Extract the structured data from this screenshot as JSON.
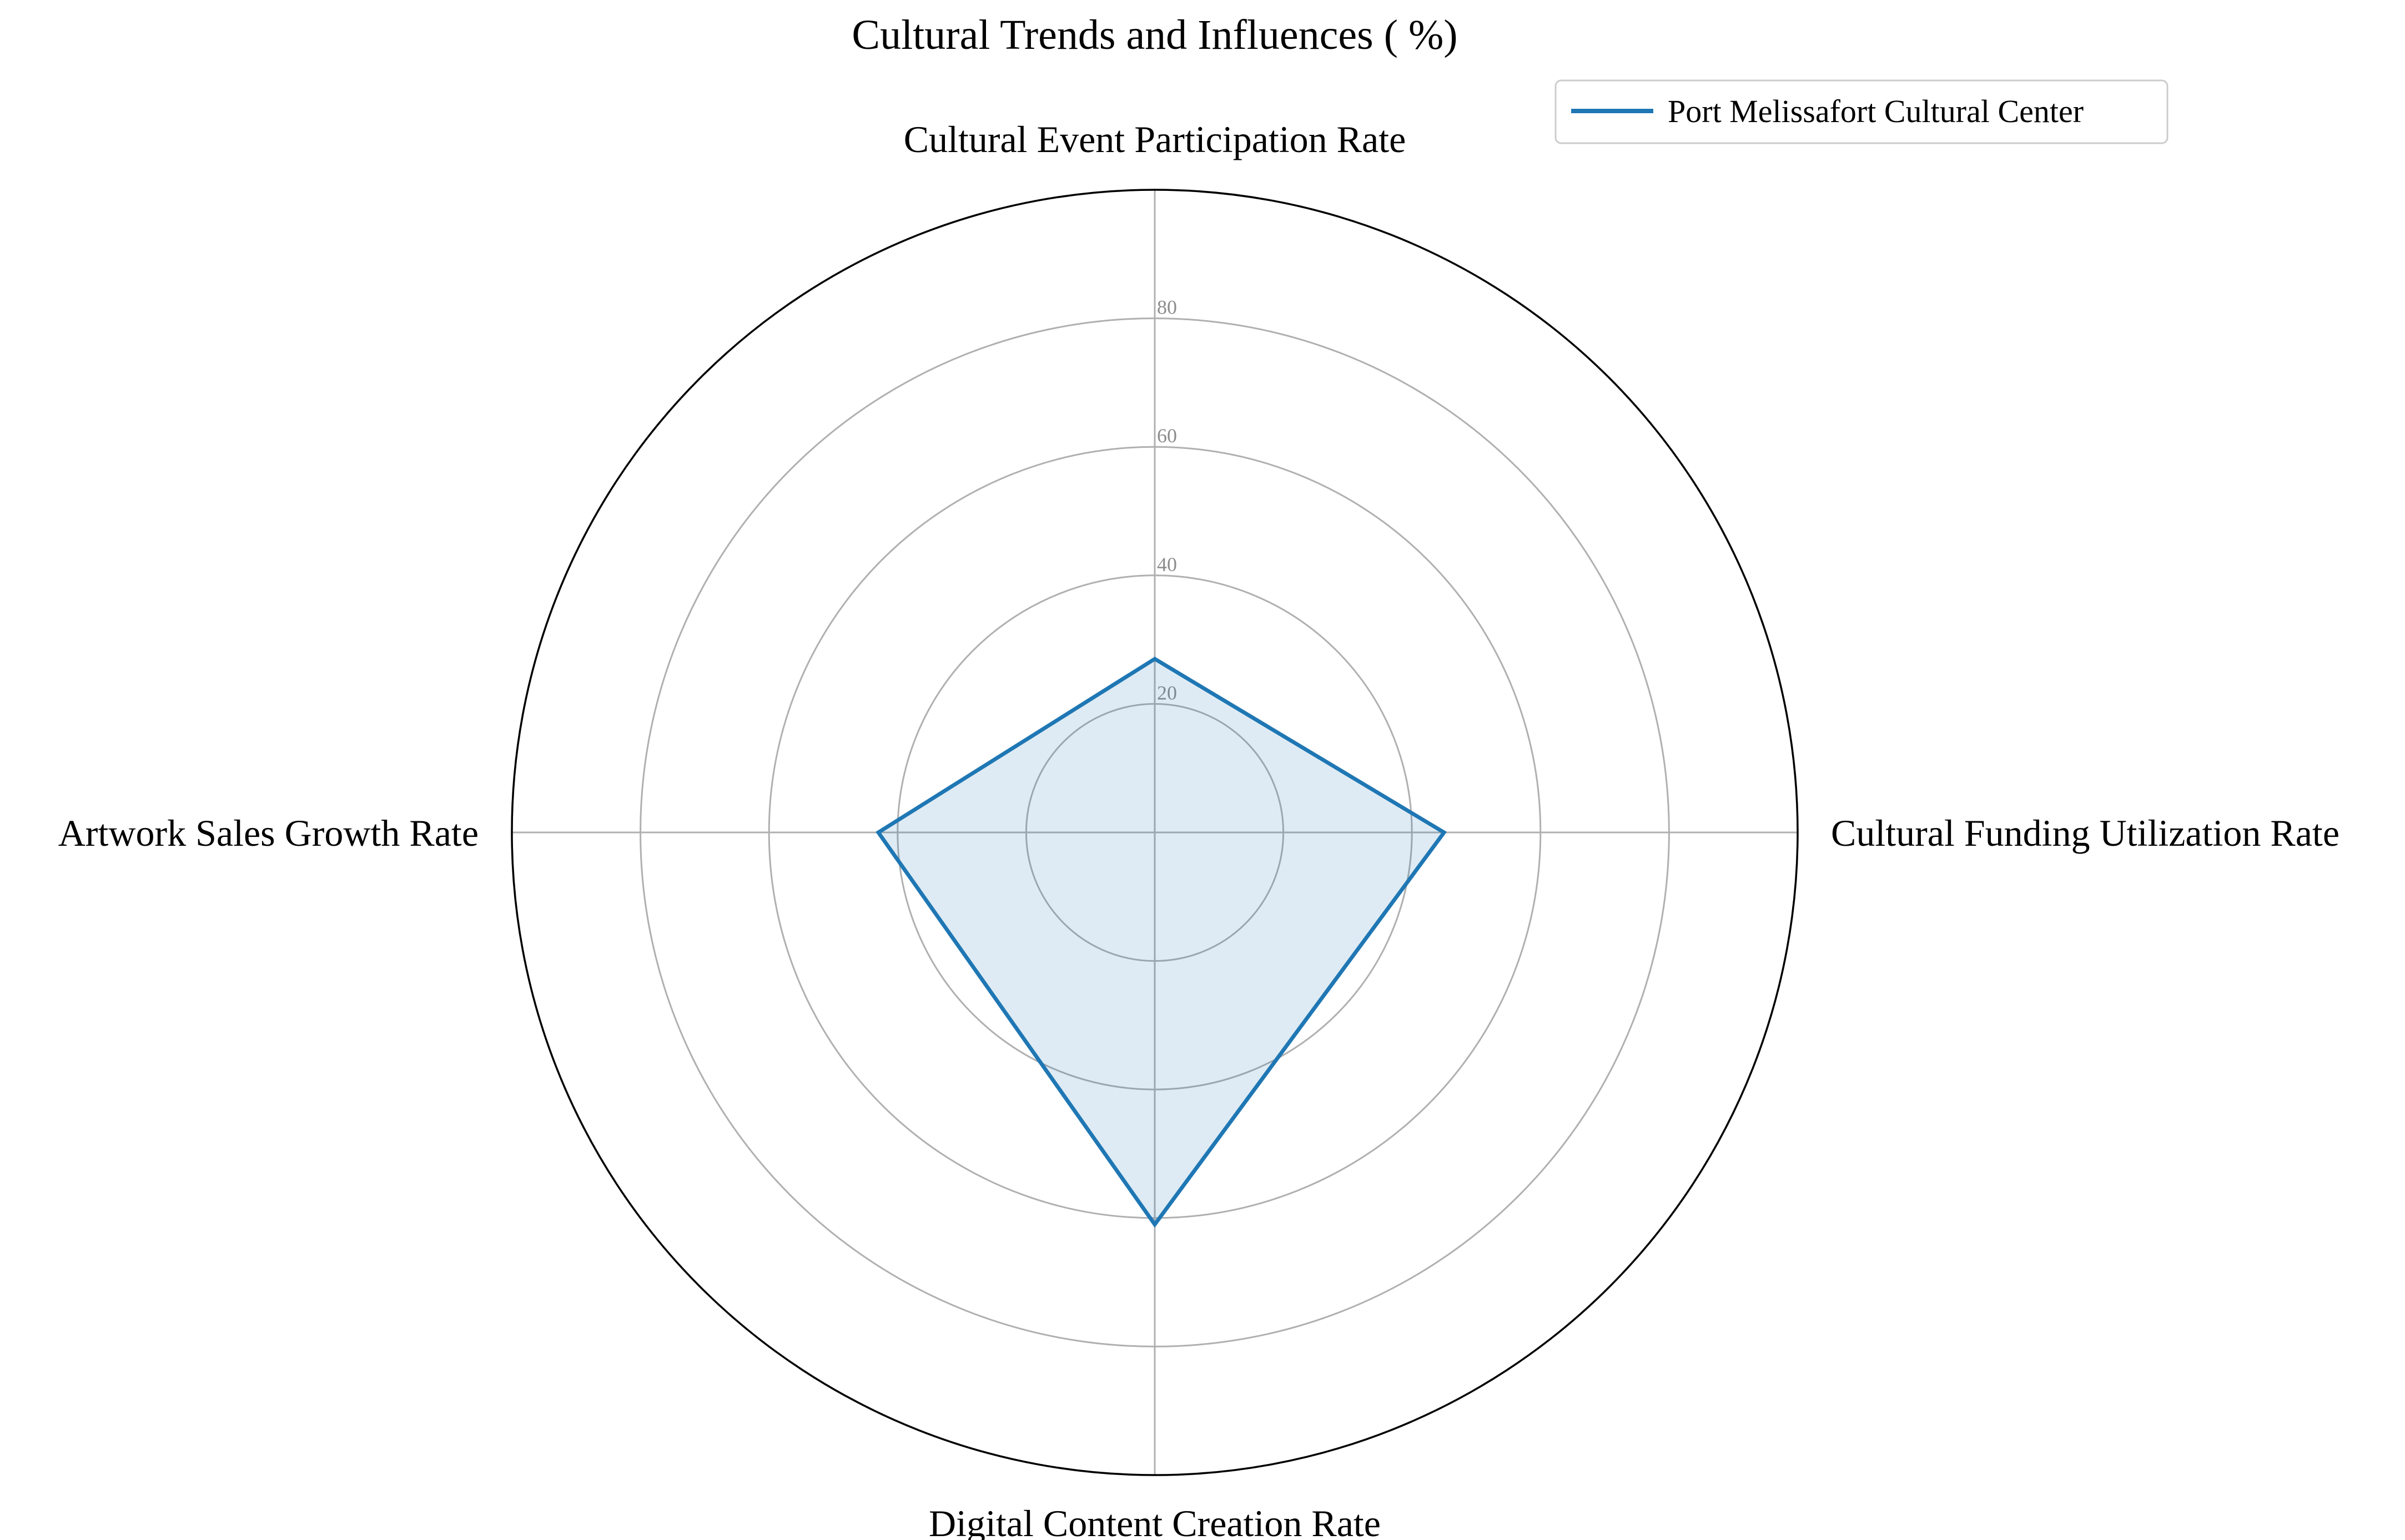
{
  "chart_data": {
    "type": "radar",
    "title": "Cultural Trends and Influences ( %)",
    "categories": [
      "Cultural Event Participation Rate",
      "Cultural Funding Utilization Rate",
      "Digital Content Creation Rate",
      "Artwork Sales Growth Rate"
    ],
    "series": [
      {
        "name": "Port Melissafort Cultural Center",
        "values": [
          27,
          45,
          61,
          43
        ],
        "color": "#1f77b4"
      }
    ],
    "rlim": [
      0,
      100
    ],
    "rticks": [
      20,
      40,
      60,
      80
    ],
    "rtick_labels": [
      "20",
      "40",
      "60",
      "80"
    ],
    "grid": true,
    "legend_position": "top-right"
  }
}
